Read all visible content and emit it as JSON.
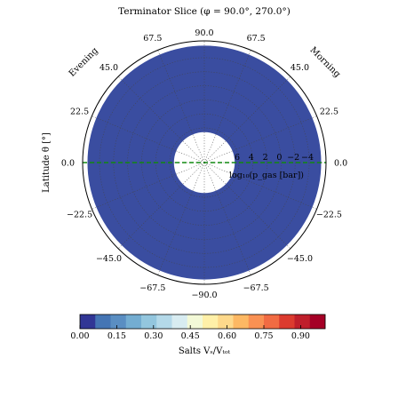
{
  "chart_data": {
    "type": "heatmap",
    "projection": "polar",
    "title": "Terminator Slice (φ = 90.0°, 270.0°)",
    "angle_label": "Latitude θ [°]",
    "radial_label": "log₁₀(p_gas [bar])",
    "side_labels": [
      "Evening",
      "Morning"
    ],
    "latitude_ticks": [
      {
        "lat": 90,
        "side": "top",
        "label": "90.0"
      },
      {
        "lat": 67.5,
        "side": "left",
        "label": "67.5"
      },
      {
        "lat": 67.5,
        "side": "right",
        "label": "67.5"
      },
      {
        "lat": 45,
        "side": "left",
        "label": "45.0"
      },
      {
        "lat": 45,
        "side": "right",
        "label": "45.0"
      },
      {
        "lat": 22.5,
        "side": "left",
        "label": "22.5"
      },
      {
        "lat": 22.5,
        "side": "right",
        "label": "22.5"
      },
      {
        "lat": 0,
        "side": "left",
        "label": "0.0"
      },
      {
        "lat": 0,
        "side": "right",
        "label": "0.0"
      },
      {
        "lat": -22.5,
        "side": "left",
        "label": "−22.5"
      },
      {
        "lat": -22.5,
        "side": "right",
        "label": "−22.5"
      },
      {
        "lat": -45,
        "side": "left",
        "label": "−45.0"
      },
      {
        "lat": -45,
        "side": "right",
        "label": "−45.0"
      },
      {
        "lat": -67.5,
        "side": "left",
        "label": "−67.5"
      },
      {
        "lat": -67.5,
        "side": "right",
        "label": "−67.5"
      },
      {
        "lat": -90,
        "side": "bottom",
        "label": "−90.0"
      }
    ],
    "radial_axis": {
      "min_log_p": 6.6,
      "max_log_p": -6.4,
      "ticks": [
        6,
        4,
        2,
        0,
        -2,
        -4
      ],
      "tick_labels": [
        "6",
        "4",
        "2",
        "0",
        "−2",
        "−4"
      ],
      "inner_radius_fraction": 0.25,
      "data_outer_radius_fraction": 0.96
    },
    "field": {
      "name": "Salts V_s/V_tot",
      "uniform_value": 0.0,
      "fill_color": "#3a4da0"
    },
    "equator_line_color": "#118811",
    "colorbar": {
      "label": "Salts Vₛ/Vₜₒₜ",
      "range": [
        0,
        1
      ],
      "ticks": [
        0.0,
        0.15,
        0.3,
        0.45,
        0.6,
        0.75,
        0.9
      ],
      "tick_labels": [
        "0.00",
        "0.15",
        "0.30",
        "0.45",
        "0.60",
        "0.75",
        "0.90"
      ],
      "colors": [
        "#313695",
        "#4575b4",
        "#5a8ec2",
        "#74add1",
        "#93c6de",
        "#b4d9e9",
        "#d8ecf1",
        "#f3f9d7",
        "#fff0a8",
        "#fed98b",
        "#fdb863",
        "#f99153",
        "#f16b43",
        "#dc3b2f",
        "#bf1f2b",
        "#a50026"
      ]
    },
    "grid": true
  }
}
